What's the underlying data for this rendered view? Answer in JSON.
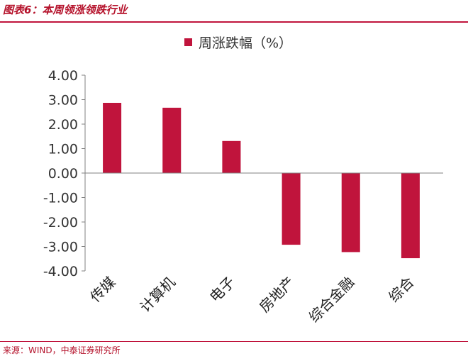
{
  "figure": {
    "title": "图表6：本周领涨领跌行业",
    "source": "来源：WIND，中泰证券研究所"
  },
  "colors": {
    "bar": "#c0143c",
    "axis": "#808080",
    "accent": "#c0143c"
  },
  "chart_data": {
    "type": "bar",
    "categories": [
      "传媒",
      "计算机",
      "电子",
      "房地产",
      "综合金融",
      "综合"
    ],
    "series": [
      {
        "name": "周涨跌幅（%）",
        "values": [
          2.87,
          2.67,
          1.31,
          -2.93,
          -3.23,
          -3.48
        ]
      }
    ],
    "ylim": [
      -4,
      4
    ],
    "yticks": [
      "4.00",
      "3.00",
      "2.00",
      "1.00",
      "0.00",
      "-1.00",
      "-2.00",
      "-3.00",
      "-4.00"
    ],
    "ytick_values": [
      4,
      3,
      2,
      1,
      0,
      -1,
      -2,
      -3,
      -4
    ],
    "legend": "top-center",
    "grid": false
  }
}
